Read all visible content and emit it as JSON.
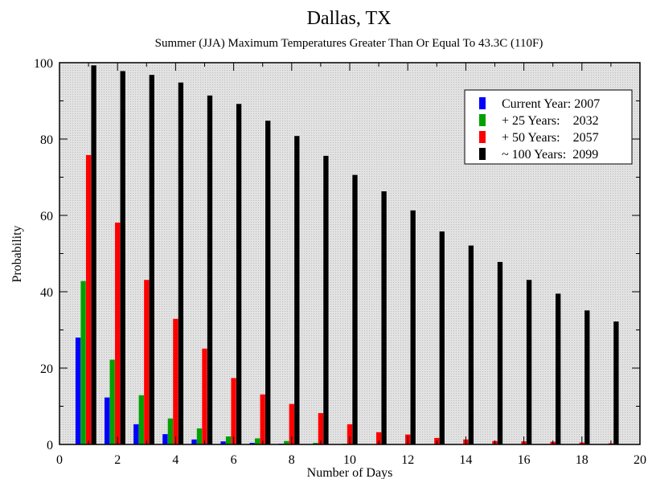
{
  "chart_data": {
    "type": "bar",
    "title": "Dallas, TX",
    "subtitle": "Summer (JJA) Maximum Temperatures Greater Than Or Equal To 43.3C (110F)",
    "xlabel": "Number of Days",
    "ylabel": "Probability",
    "xlim": [
      0,
      20
    ],
    "ylim": [
      0,
      100
    ],
    "x_ticks": [
      0,
      2,
      4,
      6,
      8,
      10,
      12,
      14,
      16,
      18,
      20
    ],
    "y_ticks": [
      0,
      20,
      40,
      60,
      80,
      100
    ],
    "grid": false,
    "legend_position": "top-right",
    "categories": [
      1,
      2,
      3,
      4,
      5,
      6,
      7,
      8,
      9,
      10,
      11,
      12,
      13,
      14,
      15,
      16,
      17,
      18,
      19
    ],
    "series": [
      {
        "name": "Current Year: 2007",
        "color": "#0000ff",
        "values": [
          28,
          12.3,
          5.3,
          2.7,
          1.3,
          0.8,
          0.4,
          0.2,
          0.1,
          0,
          0,
          0,
          0,
          0,
          0,
          0,
          0,
          0,
          0
        ]
      },
      {
        "name": "+ 25 Years:    2032",
        "color": "#00a000",
        "values": [
          42.8,
          22.2,
          12.9,
          6.8,
          4.2,
          2.1,
          1.6,
          0.9,
          0.4,
          0.2,
          0.1,
          0,
          0,
          0,
          0,
          0,
          0,
          0,
          0
        ]
      },
      {
        "name": "+ 50 Years:    2057",
        "color": "#ff0000",
        "values": [
          75.8,
          58.1,
          43.1,
          32.9,
          25.1,
          17.4,
          13.1,
          10.6,
          8.2,
          5.3,
          3.2,
          2.6,
          1.7,
          1.3,
          0.9,
          0.8,
          0.7,
          0.5,
          0.3
        ]
      },
      {
        "name": "~ 100 Years:  2099",
        "color": "#000000",
        "values": [
          99.3,
          97.8,
          96.8,
          94.8,
          91.4,
          89.2,
          84.8,
          80.8,
          75.6,
          70.6,
          66.3,
          61.3,
          55.8,
          52.1,
          47.8,
          43.1,
          39.5,
          35.1,
          32.2
        ]
      }
    ]
  }
}
